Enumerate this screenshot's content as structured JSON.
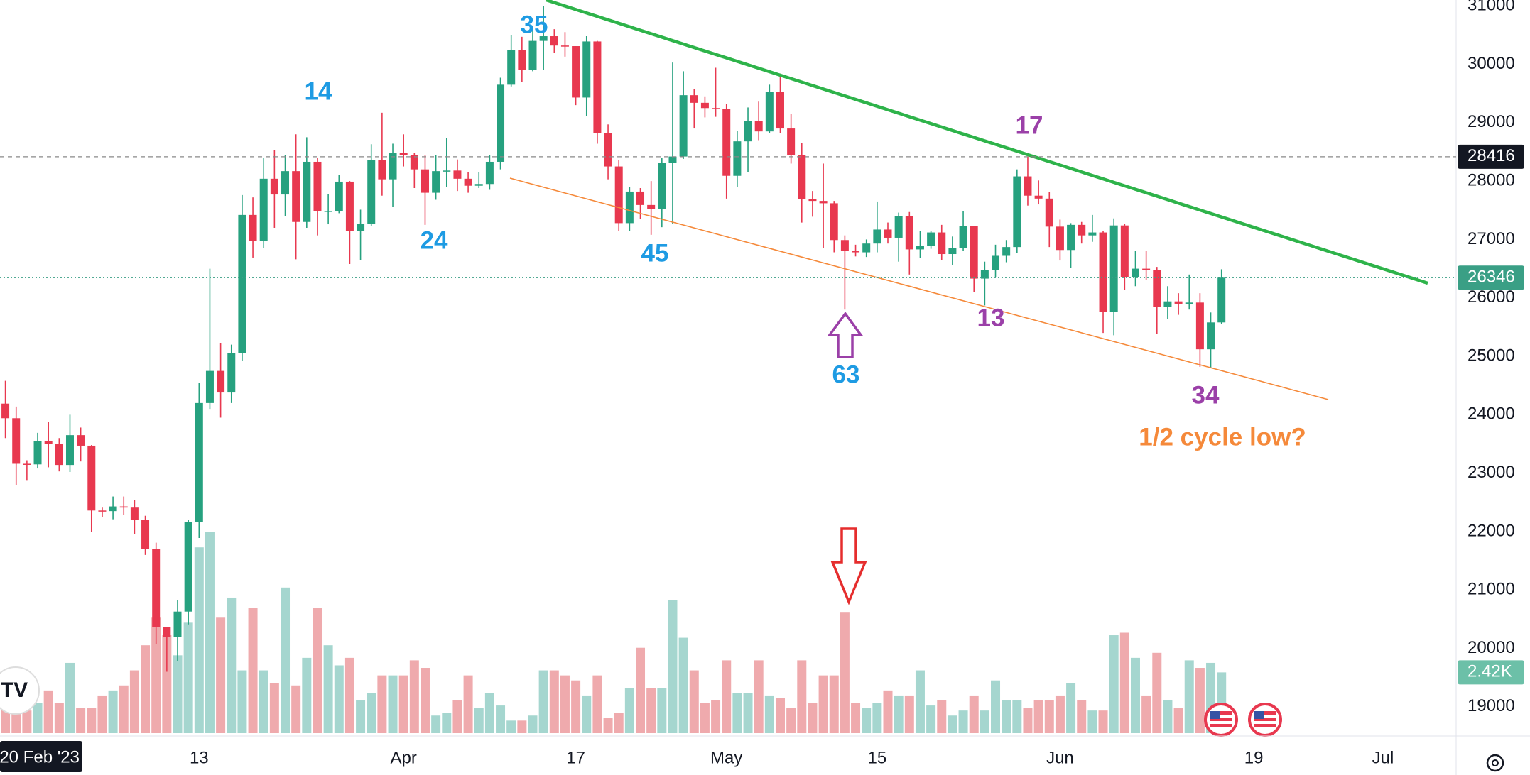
{
  "chart_data": {
    "type": "candlestick",
    "up_color": "#26a17f",
    "down_color": "#e8384f",
    "volume_up_color": "#a5d6cf",
    "volume_down_color": "#efaaad",
    "grid": true,
    "ylim": [
      18500,
      31100
    ],
    "yticks": [
      19000,
      20000,
      21000,
      22000,
      23000,
      24000,
      25000,
      26000,
      27000,
      28000,
      29000,
      30000,
      31000
    ],
    "xlim": [
      -0.5,
      134.8
    ],
    "xticks": [
      {
        "value": 18,
        "label": "13"
      },
      {
        "value": 37,
        "label": "Apr"
      },
      {
        "value": 53,
        "label": "17"
      },
      {
        "value": 67,
        "label": "May"
      },
      {
        "value": 81,
        "label": "15"
      },
      {
        "value": 98,
        "label": "Jun"
      },
      {
        "value": 116,
        "label": "19"
      },
      {
        "value": 128,
        "label": "Jul"
      }
    ],
    "date_cursor": "20 Feb '23",
    "last_price": 26346,
    "last_price_color": "#3a9f85",
    "ref_price": 28416,
    "volume_lim": [
      0,
      29.2
    ],
    "volume_label": "2.42K",
    "open": [
      24190,
      23940,
      23160,
      23150,
      23550,
      23500,
      23140,
      23650,
      23470,
      22360,
      22350,
      22430,
      22410,
      22200,
      21700,
      20360,
      20190,
      20630,
      22160,
      24200,
      24750,
      24380,
      25050,
      27420,
      26970,
      28040,
      27770,
      28170,
      27300,
      28330,
      27490,
      27490,
      27990,
      27140,
      27270,
      28360,
      28030,
      28480,
      28450,
      28200,
      27800,
      28170,
      28180,
      28040,
      27920,
      27950,
      28330,
      29650,
      30240,
      29900,
      30400,
      30480,
      30320,
      30310,
      29430,
      30390,
      28820,
      28250,
      27280,
      27820,
      27590,
      27520,
      28310,
      28420,
      29470,
      29340,
      29250,
      29230,
      28090,
      28680,
      29030,
      28850,
      29530,
      28900,
      28450,
      27690,
      27660,
      27620,
      26990,
      26800,
      26780,
      26930,
      27170,
      27030,
      27400,
      26830,
      26890,
      27120,
      26750,
      26850,
      27230,
      26330,
      26480,
      26720,
      26870,
      28080,
      27750,
      27700,
      27220,
      26820,
      27250,
      27070,
      27120,
      25760,
      27240,
      26350,
      26500,
      26480,
      25850,
      25940,
      25900,
      25920,
      25120,
      25580
    ],
    "high": [
      24580,
      24140,
      23220,
      23690,
      23880,
      23600,
      24000,
      23780,
      23480,
      22410,
      22600,
      22600,
      22540,
      22270,
      21810,
      20370,
      20830,
      22200,
      24550,
      26500,
      25230,
      25200,
      27760,
      27720,
      28400,
      28530,
      28450,
      28800,
      28750,
      28400,
      27780,
      28110,
      28000,
      27510,
      28630,
      29170,
      28640,
      28800,
      28480,
      28450,
      28440,
      28740,
      28370,
      28150,
      28150,
      28450,
      29770,
      30500,
      30470,
      30600,
      31000,
      30600,
      30550,
      30310,
      30480,
      30400,
      28970,
      28360,
      27900,
      27880,
      28000,
      28400,
      30030,
      29880,
      29580,
      29450,
      29940,
      29320,
      28860,
      29260,
      29360,
      29650,
      29840,
      29150,
      28650,
      27830,
      28300,
      27660,
      27070,
      26910,
      27000,
      27650,
      27290,
      27460,
      27470,
      27150,
      27150,
      27250,
      27050,
      27480,
      27230,
      26620,
      26910,
      26990,
      28200,
      28420,
      28010,
      27820,
      27340,
      27280,
      27300,
      27420,
      27140,
      27360,
      27270,
      26800,
      26800,
      26530,
      26200,
      26080,
      26400,
      26080,
      25750,
      26490
    ],
    "low": [
      23600,
      22800,
      22870,
      23080,
      23100,
      23030,
      23020,
      23200,
      22000,
      22250,
      22210,
      22280,
      21960,
      21600,
      20080,
      19600,
      19780,
      20410,
      21890,
      24100,
      23950,
      24200,
      24920,
      26690,
      26860,
      27200,
      27400,
      26660,
      27200,
      27070,
      27260,
      27450,
      26580,
      26650,
      27230,
      27750,
      27560,
      28250,
      27880,
      27250,
      27680,
      27900,
      27830,
      27800,
      27880,
      27850,
      28200,
      29620,
      29700,
      29880,
      29900,
      30200,
      30130,
      29300,
      29120,
      28640,
      28030,
      27150,
      27140,
      27350,
      27080,
      27210,
      27270,
      28380,
      28900,
      29090,
      29100,
      27700,
      27900,
      28150,
      28700,
      28820,
      28820,
      28300,
      27290,
      27390,
      26850,
      26780,
      25800,
      26710,
      26700,
      26780,
      26930,
      26620,
      26400,
      26680,
      26840,
      26650,
      26560,
      26810,
      26100,
      25870,
      26360,
      26610,
      26770,
      27580,
      27600,
      26870,
      26640,
      26510,
      26930,
      26960,
      25400,
      25360,
      26140,
      26200,
      26310,
      25380,
      25640,
      25710,
      25800,
      24820,
      24800,
      25550
    ],
    "close": [
      23940,
      23160,
      23150,
      23550,
      23500,
      23140,
      23650,
      23470,
      22360,
      22350,
      22430,
      22410,
      22200,
      21700,
      20360,
      20190,
      20630,
      22160,
      24200,
      24750,
      24380,
      25050,
      27420,
      26970,
      28040,
      27770,
      28170,
      27300,
      28330,
      27490,
      27490,
      27990,
      27140,
      27270,
      28360,
      28030,
      28480,
      28450,
      28200,
      27800,
      28170,
      28180,
      28040,
      27920,
      27950,
      28330,
      29650,
      30240,
      29900,
      30400,
      30480,
      30320,
      30310,
      29430,
      30390,
      28820,
      28250,
      27280,
      27820,
      27590,
      27520,
      28310,
      28420,
      29470,
      29340,
      29250,
      29230,
      28090,
      28680,
      29030,
      28850,
      29530,
      28900,
      28450,
      27690,
      27660,
      27620,
      26990,
      26800,
      26780,
      26930,
      27170,
      27030,
      27400,
      26830,
      26890,
      27120,
      26750,
      26850,
      27230,
      26330,
      26480,
      26720,
      26870,
      28080,
      27750,
      27700,
      27220,
      26820,
      27250,
      27070,
      27120,
      25760,
      27240,
      26350,
      26500,
      26480,
      25850,
      25940,
      25900,
      25920,
      25120,
      25580,
      26346
    ],
    "volume": [
      1.0,
      1.0,
      0.9,
      1.2,
      1.7,
      1.2,
      2.8,
      1.0,
      1.0,
      1.5,
      1.7,
      1.9,
      2.5,
      3.5,
      4.6,
      3.9,
      3.1,
      4.4,
      7.4,
      8.0,
      4.6,
      5.4,
      2.5,
      5.0,
      2.5,
      2.0,
      5.8,
      1.9,
      3.0,
      5.0,
      3.5,
      2.7,
      3.0,
      1.3,
      1.6,
      2.3,
      2.3,
      2.3,
      2.9,
      2.6,
      0.7,
      0.8,
      1.3,
      2.3,
      1.0,
      1.6,
      1.1,
      0.5,
      0.5,
      0.7,
      2.5,
      2.5,
      2.3,
      2.1,
      1.5,
      2.3,
      0.6,
      0.8,
      1.8,
      3.4,
      1.8,
      1.8,
      5.3,
      3.8,
      2.5,
      1.2,
      1.3,
      2.9,
      1.6,
      1.6,
      2.9,
      1.5,
      1.4,
      1.0,
      2.9,
      1.2,
      2.3,
      2.3,
      4.8,
      1.2,
      1.0,
      1.2,
      1.7,
      1.5,
      1.5,
      2.5,
      1.1,
      1.3,
      0.7,
      0.9,
      1.5,
      0.9,
      2.1,
      1.3,
      1.3,
      1.0,
      1.3,
      1.3,
      1.5,
      2.0,
      1.3,
      0.9,
      0.9,
      3.9,
      4.0,
      3.0,
      1.5,
      3.2,
      1.3,
      1.0,
      2.9,
      2.6,
      2.8,
      2.42
    ],
    "annotations": [
      {
        "text": "14",
        "color": "#1e9be3"
      },
      {
        "text": "24",
        "color": "#1e9be3"
      },
      {
        "text": "35",
        "color": "#1e9be3"
      },
      {
        "text": "45",
        "color": "#1e9be3"
      },
      {
        "text": "63",
        "color": "#1e9be3"
      },
      {
        "text": "17",
        "color": "#9b40a8"
      },
      {
        "text": "13",
        "color": "#9b40a8"
      },
      {
        "text": "34",
        "color": "#9b40a8"
      },
      {
        "text": "1/2 cycle low?",
        "color": "#f5893a"
      }
    ]
  }
}
